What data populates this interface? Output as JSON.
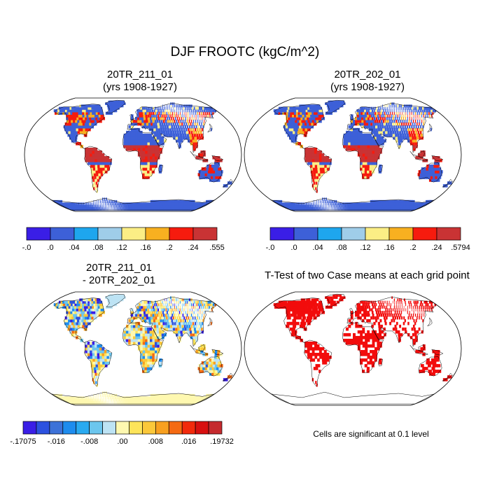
{
  "page": {
    "title": "DJF FROOTC (kgC/m^2)"
  },
  "panels": [
    {
      "id": "case1",
      "title_line1": "20TR_211_01",
      "title_line2": "(yrs 1908-1927)",
      "colorbar": {
        "colors": [
          "#3a1ee6",
          "#3d60d8",
          "#1ea6ee",
          "#9fcde9",
          "#fbee85",
          "#f8b020",
          "#f61b0e",
          "#c93334"
        ],
        "labels": [
          "-.0",
          ".0",
          ".04",
          ".08",
          ".12",
          ".16",
          ".2",
          ".24",
          ".555"
        ]
      }
    },
    {
      "id": "case2",
      "title_line1": "20TR_202_01",
      "title_line2": "(yrs 1908-1927)",
      "colorbar": {
        "colors": [
          "#3a1ee6",
          "#3d60d8",
          "#1ea6ee",
          "#9fcde9",
          "#fbee85",
          "#f8b020",
          "#f61b0e",
          "#c93334"
        ],
        "labels": [
          "-.0",
          ".0",
          ".04",
          ".08",
          ".12",
          ".16",
          ".2",
          ".24",
          ".5794"
        ]
      }
    },
    {
      "id": "diff",
      "title_line1": "20TR_211_01",
      "title_line2": "- 20TR_202_01",
      "colorbar": {
        "colors": [
          "#3a1ee6",
          "#2c52e0",
          "#3d72d8",
          "#1e8cee",
          "#2aaaf0",
          "#6cc6ee",
          "#bde3f4",
          "#fef8b0",
          "#fde45a",
          "#fbc83a",
          "#f8a020",
          "#f56a12",
          "#f22a0c",
          "#d81010",
          "#c52a2e"
        ],
        "labels": [
          "-.17075",
          "-.016",
          "-.008",
          ".00",
          ".008",
          ".016",
          ".19732"
        ]
      }
    },
    {
      "id": "ttest",
      "title_line1": "T-Test of two Case means at each grid point",
      "note": "Cells are significant at 0.1 level"
    }
  ],
  "map_colors": {
    "ocean": "#ffffff",
    "land_low": "#3d60d8",
    "land_high": "#f61b0e",
    "land_mid": "#fbee85",
    "diff_base": "#bde3f4",
    "signif": "#f20c0c",
    "outline": "#000000"
  }
}
